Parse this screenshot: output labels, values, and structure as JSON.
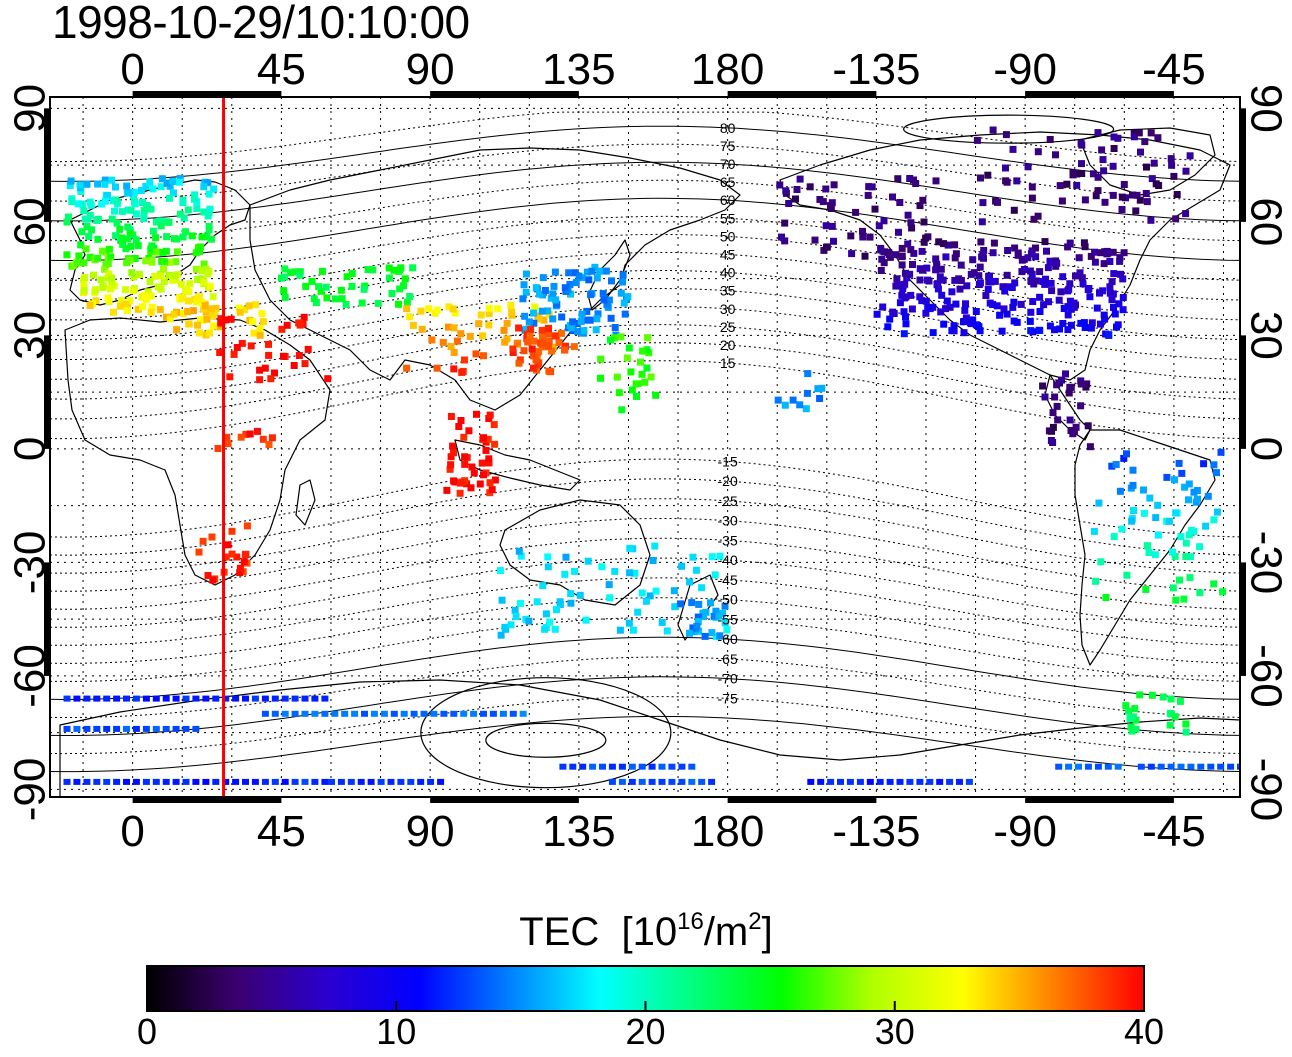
{
  "title": "1998-10-29/10:10:00",
  "map": {
    "lon_ticks_top": [
      "0",
      "45",
      "90",
      "135",
      "180",
      "-135",
      "-90",
      "-45"
    ],
    "lon_ticks_bottom": [
      "0",
      "45",
      "90",
      "135",
      "180",
      "-135",
      "-90",
      "-45"
    ],
    "lat_ticks_left": [
      "90",
      "60",
      "30",
      "0",
      "-30",
      "-60",
      "-90"
    ],
    "lat_ticks_right": [
      "90",
      "60",
      "30",
      "0",
      "-30",
      "-60",
      "-90"
    ],
    "lon_tick_values": [
      0,
      45,
      90,
      135,
      180,
      225,
      270,
      315
    ],
    "lat_tick_values": [
      90,
      60,
      30,
      0,
      -30,
      -60,
      -90
    ],
    "lon_range": [
      -25,
      335
    ],
    "lat_range": [
      -92,
      93
    ],
    "terminator_longitude": 27.5,
    "contour_labels": [
      "80",
      "75",
      "70",
      "65",
      "60",
      "55",
      "50",
      "45",
      "40",
      "35",
      "30",
      "25",
      "20",
      "15",
      "-15",
      "-20",
      "-25",
      "-30",
      "-35",
      "-40",
      "-45",
      "-50",
      "-55",
      "-60",
      "-65",
      "-70",
      "-75"
    ],
    "contour_values": [
      80,
      75,
      70,
      65,
      60,
      55,
      50,
      45,
      40,
      35,
      30,
      25,
      20,
      15,
      -15,
      -20,
      -25,
      -30,
      -35,
      -40,
      -45,
      -50,
      -55,
      -60,
      -65,
      -70,
      -75
    ],
    "colors": {
      "terminator": "#ff0000",
      "frame": "#000000"
    }
  },
  "colorbar": {
    "title": "TEC",
    "unit_base": "[10",
    "unit_exp": "16",
    "unit_mid": "/m",
    "unit_exp2": "2",
    "unit_close": "]",
    "min": 0,
    "max": 40,
    "labels": [
      "0",
      "10",
      "20",
      "30",
      "40"
    ],
    "stops": [
      "#000000",
      "#3b0070",
      "#2a00d0",
      "#0000ff",
      "#0080ff",
      "#00ffff",
      "#00ff80",
      "#00ff00",
      "#b0ff00",
      "#ffff00",
      "#ff8000",
      "#ff0000"
    ]
  }
}
